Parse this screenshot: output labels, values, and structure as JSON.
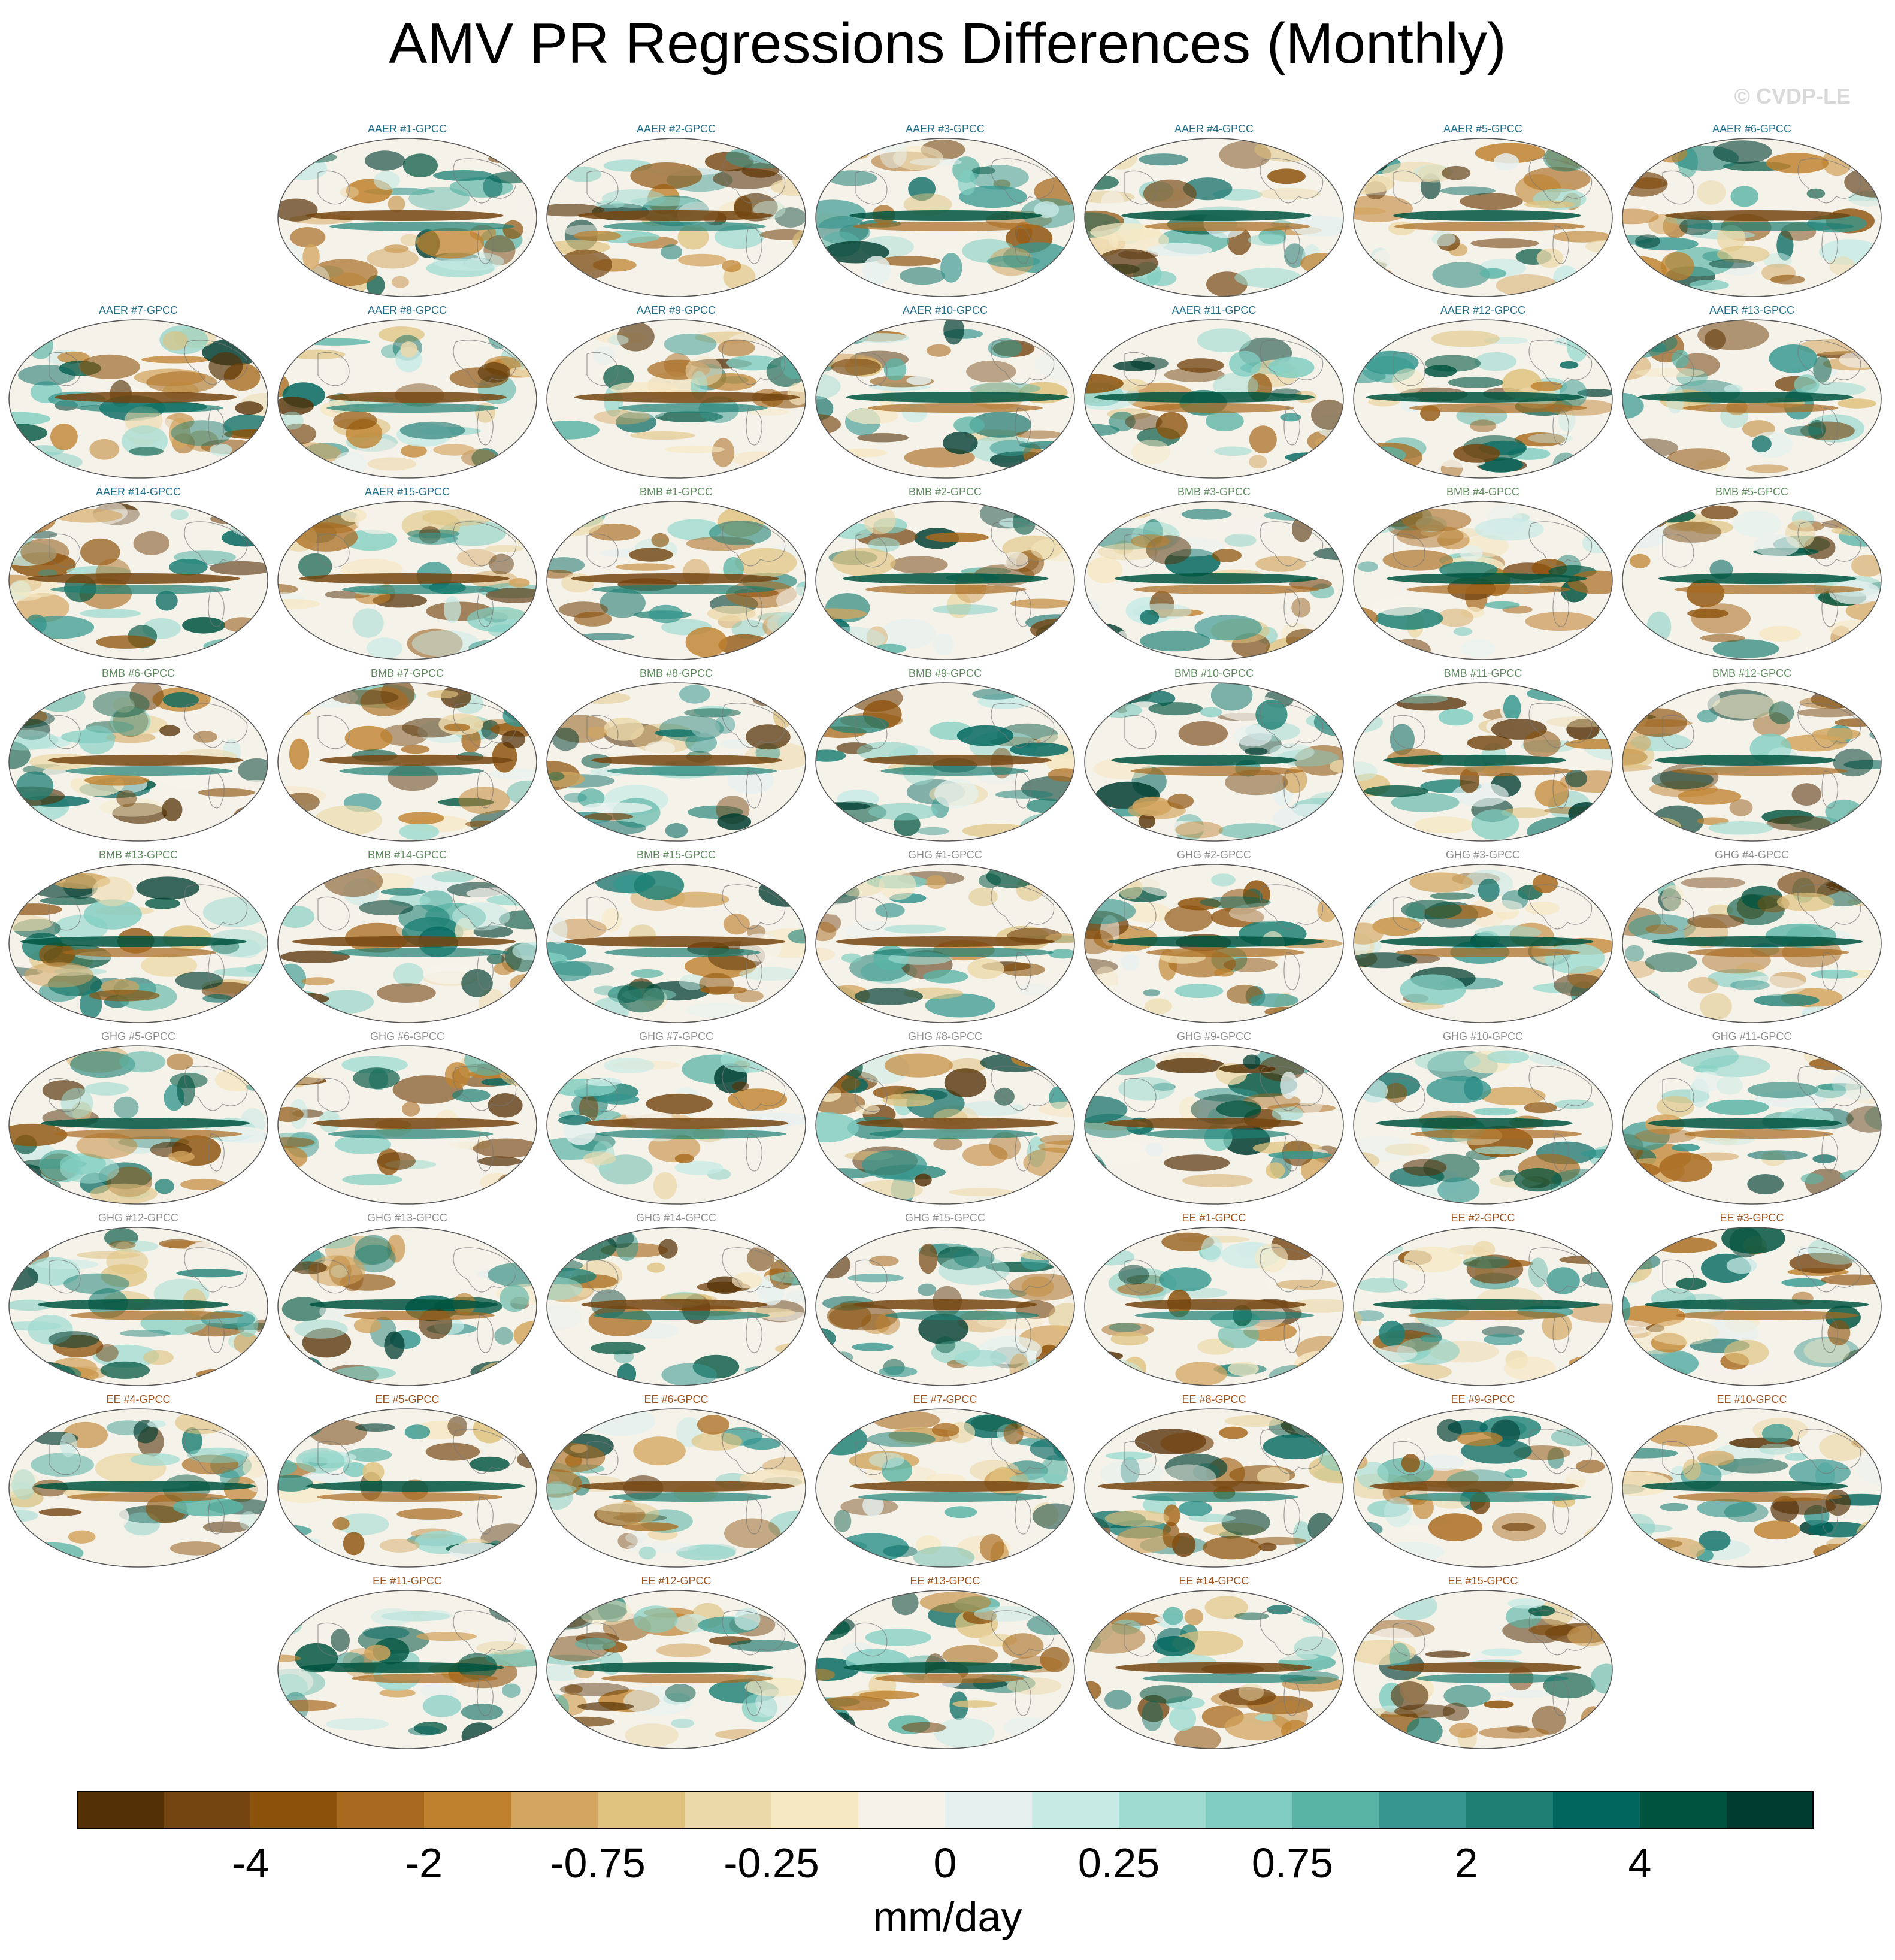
{
  "title": "AMV PR Regressions Differences (Monthly)",
  "watermark": "© CVDP-LE",
  "chart_data": {
    "type": "heatmap",
    "title": "AMV PR Regressions Differences (Monthly)",
    "units": "mm/day",
    "projection": "global map",
    "colorbar": {
      "tick_labels": [
        "-4",
        "-2",
        "-0.75",
        "-0.25",
        "0",
        "0.25",
        "0.75",
        "2",
        "4"
      ],
      "colors": [
        "#543005",
        "#744510",
        "#8c510a",
        "#a86a1e",
        "#bf812d",
        "#d3a55e",
        "#dfc27d",
        "#ecd9aa",
        "#f6e8c3",
        "#f5f2ea",
        "#e6f1ef",
        "#c7eae5",
        "#9fdbd1",
        "#80cdc1",
        "#5ab4a6",
        "#35978f",
        "#1d7f74",
        "#01665e",
        "#00543f",
        "#003c30"
      ]
    },
    "panels": [
      {
        "label": "AAER #1-GPCC",
        "group": "AAER"
      },
      {
        "label": "AAER #2-GPCC",
        "group": "AAER"
      },
      {
        "label": "AAER #3-GPCC",
        "group": "AAER"
      },
      {
        "label": "AAER #4-GPCC",
        "group": "AAER"
      },
      {
        "label": "AAER #5-GPCC",
        "group": "AAER"
      },
      {
        "label": "AAER #6-GPCC",
        "group": "AAER"
      },
      {
        "label": "AAER #7-GPCC",
        "group": "AAER"
      },
      {
        "label": "AAER #8-GPCC",
        "group": "AAER"
      },
      {
        "label": "AAER #9-GPCC",
        "group": "AAER"
      },
      {
        "label": "AAER #10-GPCC",
        "group": "AAER"
      },
      {
        "label": "AAER #11-GPCC",
        "group": "AAER"
      },
      {
        "label": "AAER #12-GPCC",
        "group": "AAER"
      },
      {
        "label": "AAER #13-GPCC",
        "group": "AAER"
      },
      {
        "label": "AAER #14-GPCC",
        "group": "AAER"
      },
      {
        "label": "AAER #15-GPCC",
        "group": "AAER"
      },
      {
        "label": "BMB #1-GPCC",
        "group": "BMB"
      },
      {
        "label": "BMB #2-GPCC",
        "group": "BMB"
      },
      {
        "label": "BMB #3-GPCC",
        "group": "BMB"
      },
      {
        "label": "BMB #4-GPCC",
        "group": "BMB"
      },
      {
        "label": "BMB #5-GPCC",
        "group": "BMB"
      },
      {
        "label": "BMB #6-GPCC",
        "group": "BMB"
      },
      {
        "label": "BMB #7-GPCC",
        "group": "BMB"
      },
      {
        "label": "BMB #8-GPCC",
        "group": "BMB"
      },
      {
        "label": "BMB #9-GPCC",
        "group": "BMB"
      },
      {
        "label": "BMB #10-GPCC",
        "group": "BMB"
      },
      {
        "label": "BMB #11-GPCC",
        "group": "BMB"
      },
      {
        "label": "BMB #12-GPCC",
        "group": "BMB"
      },
      {
        "label": "BMB #13-GPCC",
        "group": "BMB"
      },
      {
        "label": "BMB #14-GPCC",
        "group": "BMB"
      },
      {
        "label": "BMB #15-GPCC",
        "group": "BMB"
      },
      {
        "label": "GHG #1-GPCC",
        "group": "GHG"
      },
      {
        "label": "GHG #2-GPCC",
        "group": "GHG"
      },
      {
        "label": "GHG #3-GPCC",
        "group": "GHG"
      },
      {
        "label": "GHG #4-GPCC",
        "group": "GHG"
      },
      {
        "label": "GHG #5-GPCC",
        "group": "GHG"
      },
      {
        "label": "GHG #6-GPCC",
        "group": "GHG"
      },
      {
        "label": "GHG #7-GPCC",
        "group": "GHG"
      },
      {
        "label": "GHG #8-GPCC",
        "group": "GHG"
      },
      {
        "label": "GHG #9-GPCC",
        "group": "GHG"
      },
      {
        "label": "GHG #10-GPCC",
        "group": "GHG"
      },
      {
        "label": "GHG #11-GPCC",
        "group": "GHG"
      },
      {
        "label": "GHG #12-GPCC",
        "group": "GHG"
      },
      {
        "label": "GHG #13-GPCC",
        "group": "GHG"
      },
      {
        "label": "GHG #14-GPCC",
        "group": "GHG"
      },
      {
        "label": "GHG #15-GPCC",
        "group": "GHG"
      },
      {
        "label": "EE #1-GPCC",
        "group": "EE"
      },
      {
        "label": "EE #2-GPCC",
        "group": "EE"
      },
      {
        "label": "EE #3-GPCC",
        "group": "EE"
      },
      {
        "label": "EE #4-GPCC",
        "group": "EE"
      },
      {
        "label": "EE #5-GPCC",
        "group": "EE"
      },
      {
        "label": "EE #6-GPCC",
        "group": "EE"
      },
      {
        "label": "EE #7-GPCC",
        "group": "EE"
      },
      {
        "label": "EE #8-GPCC",
        "group": "EE"
      },
      {
        "label": "EE #9-GPCC",
        "group": "EE"
      },
      {
        "label": "EE #10-GPCC",
        "group": "EE"
      },
      {
        "label": "EE #11-GPCC",
        "group": "EE"
      },
      {
        "label": "EE #12-GPCC",
        "group": "EE"
      },
      {
        "label": "EE #13-GPCC",
        "group": "EE"
      },
      {
        "label": "EE #14-GPCC",
        "group": "EE"
      },
      {
        "label": "EE #15-GPCC",
        "group": "EE"
      }
    ],
    "group_label_colors": {
      "AAER": "#1f6e8c",
      "BMB": "#5e8a5e",
      "GHG": "#8c8c8c",
      "EE": "#a0521d"
    }
  }
}
